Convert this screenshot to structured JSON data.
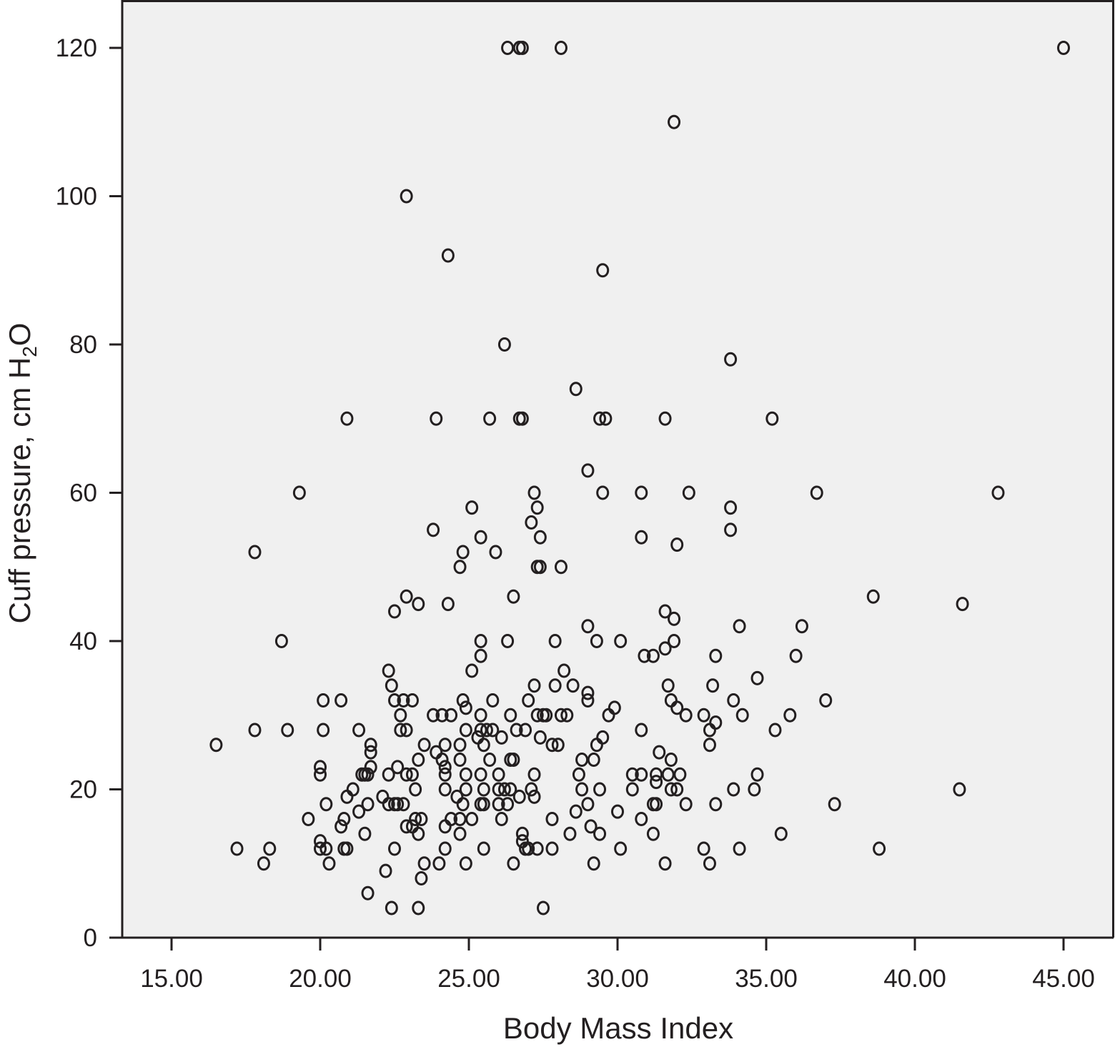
{
  "chart_data": {
    "type": "scatter",
    "title": "",
    "xlabel": "Body Mass Index",
    "ylabel": {
      "before": "Cuff pressure, cm H",
      "subscript": "2",
      "after": "O"
    },
    "xlim": [
      13,
      45.5
    ],
    "ylim": [
      0,
      125
    ],
    "x_ticks": [
      15,
      20,
      25,
      30,
      35,
      40,
      45
    ],
    "x_tick_labels": [
      "15.00",
      "20.00",
      "25.00",
      "30.00",
      "35.00",
      "40.00",
      "45.00"
    ],
    "y_ticks": [
      0,
      20,
      40,
      60,
      80,
      100,
      120
    ],
    "y_tick_labels": [
      "0",
      "20",
      "40",
      "60",
      "80",
      "100",
      "120"
    ],
    "grid": false,
    "legend": "none",
    "colors": {
      "plot_background": "#f0f0f0",
      "ink": "#231f20"
    },
    "marker": "open-circle",
    "series": [
      {
        "points": [
          [
            26.3,
            120
          ],
          [
            26.7,
            120
          ],
          [
            26.8,
            120
          ],
          [
            28.1,
            120
          ],
          [
            45.0,
            120
          ],
          [
            31.9,
            110
          ],
          [
            22.9,
            100
          ],
          [
            24.3,
            92
          ],
          [
            29.5,
            90
          ],
          [
            26.2,
            80
          ],
          [
            33.8,
            78
          ],
          [
            28.6,
            74
          ],
          [
            20.9,
            70
          ],
          [
            23.9,
            70
          ],
          [
            25.7,
            70
          ],
          [
            26.7,
            70
          ],
          [
            26.8,
            70
          ],
          [
            29.4,
            70
          ],
          [
            29.6,
            70
          ],
          [
            31.6,
            70
          ],
          [
            35.2,
            70
          ],
          [
            29.0,
            63
          ],
          [
            19.3,
            60
          ],
          [
            27.2,
            60
          ],
          [
            29.5,
            60
          ],
          [
            30.8,
            60
          ],
          [
            32.4,
            60
          ],
          [
            36.7,
            60
          ],
          [
            42.8,
            60
          ],
          [
            25.1,
            58
          ],
          [
            27.3,
            58
          ],
          [
            33.8,
            58
          ],
          [
            27.1,
            56
          ],
          [
            23.8,
            55
          ],
          [
            33.8,
            55
          ],
          [
            25.4,
            54
          ],
          [
            27.4,
            54
          ],
          [
            30.8,
            54
          ],
          [
            32.0,
            53
          ],
          [
            17.8,
            52
          ],
          [
            24.8,
            52
          ],
          [
            25.9,
            52
          ],
          [
            24.7,
            50
          ],
          [
            27.3,
            50
          ],
          [
            27.4,
            50
          ],
          [
            28.1,
            50
          ],
          [
            22.9,
            46
          ],
          [
            26.5,
            46
          ],
          [
            38.6,
            46
          ],
          [
            23.3,
            45
          ],
          [
            24.3,
            45
          ],
          [
            41.6,
            45
          ],
          [
            22.5,
            44
          ],
          [
            31.6,
            44
          ],
          [
            31.9,
            43
          ],
          [
            29.0,
            42
          ],
          [
            34.1,
            42
          ],
          [
            36.2,
            42
          ],
          [
            18.7,
            40
          ],
          [
            25.4,
            40
          ],
          [
            26.3,
            40
          ],
          [
            27.9,
            40
          ],
          [
            29.3,
            40
          ],
          [
            30.1,
            40
          ],
          [
            31.9,
            40
          ],
          [
            31.6,
            39
          ],
          [
            25.4,
            38
          ],
          [
            30.9,
            38
          ],
          [
            31.2,
            38
          ],
          [
            33.3,
            38
          ],
          [
            36.0,
            38
          ],
          [
            25.1,
            36
          ],
          [
            22.3,
            36
          ],
          [
            28.2,
            36
          ],
          [
            34.7,
            35
          ],
          [
            22.4,
            34
          ],
          [
            27.2,
            34
          ],
          [
            27.9,
            34
          ],
          [
            28.5,
            34
          ],
          [
            31.7,
            34
          ],
          [
            33.2,
            34
          ],
          [
            29.0,
            33
          ],
          [
            20.1,
            32
          ],
          [
            20.7,
            32
          ],
          [
            22.5,
            32
          ],
          [
            22.8,
            32
          ],
          [
            23.1,
            32
          ],
          [
            24.8,
            32
          ],
          [
            25.8,
            32
          ],
          [
            27.0,
            32
          ],
          [
            29.0,
            32
          ],
          [
            31.8,
            32
          ],
          [
            33.9,
            32
          ],
          [
            37.0,
            32
          ],
          [
            24.9,
            31
          ],
          [
            29.9,
            31
          ],
          [
            32.0,
            31
          ],
          [
            22.7,
            30
          ],
          [
            23.8,
            30
          ],
          [
            24.1,
            30
          ],
          [
            24.4,
            30
          ],
          [
            25.4,
            30
          ],
          [
            26.4,
            30
          ],
          [
            27.3,
            30
          ],
          [
            27.5,
            30
          ],
          [
            27.6,
            30
          ],
          [
            28.1,
            30
          ],
          [
            28.3,
            30
          ],
          [
            29.7,
            30
          ],
          [
            32.3,
            30
          ],
          [
            32.9,
            30
          ],
          [
            34.2,
            30
          ],
          [
            35.8,
            30
          ],
          [
            33.3,
            29
          ],
          [
            17.8,
            28
          ],
          [
            18.9,
            28
          ],
          [
            20.1,
            28
          ],
          [
            21.3,
            28
          ],
          [
            22.7,
            28
          ],
          [
            22.9,
            28
          ],
          [
            24.9,
            28
          ],
          [
            25.4,
            28
          ],
          [
            25.6,
            28
          ],
          [
            25.8,
            28
          ],
          [
            26.6,
            28
          ],
          [
            26.9,
            28
          ],
          [
            30.8,
            28
          ],
          [
            33.1,
            28
          ],
          [
            35.3,
            28
          ],
          [
            25.3,
            27
          ],
          [
            26.1,
            27
          ],
          [
            27.4,
            27
          ],
          [
            29.5,
            27
          ],
          [
            16.5,
            26
          ],
          [
            21.7,
            26
          ],
          [
            23.5,
            26
          ],
          [
            24.2,
            26
          ],
          [
            24.7,
            26
          ],
          [
            25.5,
            26
          ],
          [
            27.8,
            26
          ],
          [
            28.0,
            26
          ],
          [
            29.3,
            26
          ],
          [
            33.1,
            26
          ],
          [
            23.9,
            25
          ],
          [
            21.7,
            25
          ],
          [
            31.4,
            25
          ],
          [
            20.0,
            23
          ],
          [
            22.6,
            23
          ],
          [
            23.3,
            24
          ],
          [
            24.1,
            24
          ],
          [
            24.7,
            24
          ],
          [
            25.7,
            24
          ],
          [
            26.4,
            24
          ],
          [
            26.5,
            24
          ],
          [
            28.8,
            24
          ],
          [
            29.2,
            24
          ],
          [
            31.8,
            24
          ],
          [
            20.0,
            22
          ],
          [
            21.4,
            22
          ],
          [
            21.5,
            22
          ],
          [
            21.6,
            22
          ],
          [
            22.3,
            22
          ],
          [
            22.9,
            22
          ],
          [
            23.1,
            22
          ],
          [
            24.2,
            22
          ],
          [
            24.9,
            22
          ],
          [
            25.4,
            22
          ],
          [
            26.0,
            22
          ],
          [
            27.2,
            22
          ],
          [
            28.7,
            22
          ],
          [
            30.5,
            22
          ],
          [
            30.8,
            22
          ],
          [
            31.3,
            22
          ],
          [
            31.7,
            22
          ],
          [
            32.1,
            22
          ],
          [
            34.7,
            22
          ],
          [
            21.7,
            23
          ],
          [
            24.2,
            23
          ],
          [
            20.9,
            19
          ],
          [
            21.1,
            20
          ],
          [
            22.1,
            19
          ],
          [
            23.2,
            20
          ],
          [
            24.2,
            20
          ],
          [
            24.6,
            19
          ],
          [
            24.9,
            20
          ],
          [
            25.5,
            20
          ],
          [
            26.0,
            20
          ],
          [
            26.2,
            20
          ],
          [
            26.4,
            20
          ],
          [
            26.7,
            19
          ],
          [
            27.1,
            20
          ],
          [
            27.2,
            19
          ],
          [
            28.8,
            20
          ],
          [
            29.4,
            20
          ],
          [
            30.5,
            20
          ],
          [
            31.3,
            21
          ],
          [
            31.8,
            20
          ],
          [
            32.0,
            20
          ],
          [
            33.9,
            20
          ],
          [
            34.6,
            20
          ],
          [
            41.5,
            20
          ],
          [
            20.2,
            18
          ],
          [
            21.6,
            18
          ],
          [
            22.3,
            18
          ],
          [
            22.5,
            18
          ],
          [
            22.6,
            18
          ],
          [
            22.8,
            18
          ],
          [
            24.8,
            18
          ],
          [
            25.4,
            18
          ],
          [
            25.5,
            18
          ],
          [
            26.0,
            18
          ],
          [
            26.3,
            18
          ],
          [
            29.0,
            18
          ],
          [
            31.2,
            18
          ],
          [
            31.3,
            18
          ],
          [
            32.3,
            18
          ],
          [
            33.3,
            18
          ],
          [
            37.3,
            18
          ],
          [
            21.3,
            17
          ],
          [
            28.6,
            17
          ],
          [
            30.0,
            17
          ],
          [
            19.6,
            16
          ],
          [
            20.8,
            16
          ],
          [
            23.2,
            16
          ],
          [
            23.4,
            16
          ],
          [
            24.4,
            16
          ],
          [
            24.7,
            16
          ],
          [
            25.1,
            16
          ],
          [
            26.1,
            16
          ],
          [
            27.8,
            16
          ],
          [
            30.8,
            16
          ],
          [
            20.7,
            15
          ],
          [
            22.9,
            15
          ],
          [
            23.1,
            15
          ],
          [
            24.2,
            15
          ],
          [
            29.1,
            15
          ],
          [
            21.5,
            14
          ],
          [
            23.3,
            14
          ],
          [
            24.7,
            14
          ],
          [
            26.8,
            14
          ],
          [
            28.4,
            14
          ],
          [
            29.4,
            14
          ],
          [
            31.2,
            14
          ],
          [
            35.5,
            14
          ],
          [
            26.8,
            13
          ],
          [
            20.0,
            13
          ],
          [
            17.2,
            12
          ],
          [
            18.3,
            12
          ],
          [
            20.0,
            12
          ],
          [
            20.2,
            12
          ],
          [
            20.8,
            12
          ],
          [
            20.9,
            12
          ],
          [
            22.5,
            12
          ],
          [
            24.2,
            12
          ],
          [
            25.5,
            12
          ],
          [
            26.9,
            12
          ],
          [
            27.0,
            12
          ],
          [
            27.3,
            12
          ],
          [
            27.8,
            12
          ],
          [
            30.1,
            12
          ],
          [
            32.9,
            12
          ],
          [
            34.1,
            12
          ],
          [
            38.8,
            12
          ],
          [
            18.1,
            10
          ],
          [
            20.3,
            10
          ],
          [
            23.5,
            10
          ],
          [
            24.0,
            10
          ],
          [
            24.9,
            10
          ],
          [
            26.5,
            10
          ],
          [
            29.2,
            10
          ],
          [
            31.6,
            10
          ],
          [
            33.1,
            10
          ],
          [
            22.2,
            9
          ],
          [
            23.4,
            8
          ],
          [
            21.6,
            6
          ],
          [
            22.4,
            4
          ],
          [
            23.3,
            4
          ],
          [
            27.5,
            4
          ]
        ]
      }
    ]
  }
}
